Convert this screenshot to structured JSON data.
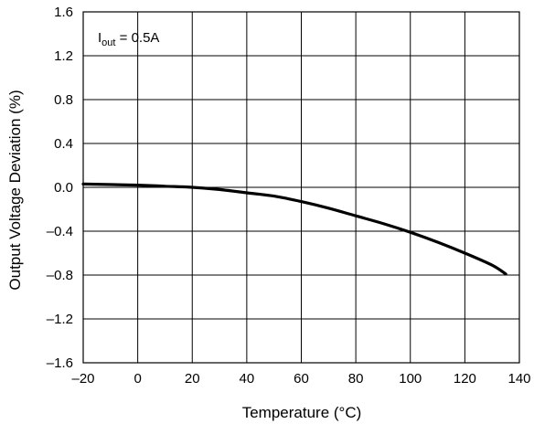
{
  "chart_data": {
    "type": "line",
    "xlabel": "Temperature (°C)",
    "ylabel": "Output Voltage Deviation (%)",
    "xlim": [
      -20,
      140
    ],
    "ylim": [
      -1.6,
      1.6
    ],
    "x_ticks": [
      -20,
      0,
      20,
      40,
      60,
      80,
      100,
      120,
      140
    ],
    "y_ticks": [
      1.6,
      1.2,
      0.8,
      0.4,
      0.0,
      -0.4,
      -0.8,
      -1.2,
      -1.6
    ],
    "x_tick_labels": [
      "–20",
      "0",
      "20",
      "40",
      "60",
      "80",
      "100",
      "120",
      "140"
    ],
    "y_tick_labels": [
      "1.6",
      "1.2",
      "0.8",
      "0.4",
      "0.0",
      "–0.4",
      "–0.8",
      "–1.2",
      "–1.6"
    ],
    "grid": true,
    "annotation": {
      "main": "I",
      "sub": "out",
      "rest": " = 0.5A"
    },
    "series": [
      {
        "x": [
          -20,
          0,
          10,
          20,
          30,
          40,
          50,
          60,
          70,
          80,
          90,
          100,
          110,
          120,
          130,
          135
        ],
        "y": [
          0.03,
          0.02,
          0.01,
          0.0,
          -0.02,
          -0.05,
          -0.08,
          -0.13,
          -0.19,
          -0.26,
          -0.33,
          -0.41,
          -0.5,
          -0.6,
          -0.71,
          -0.79
        ]
      }
    ]
  }
}
